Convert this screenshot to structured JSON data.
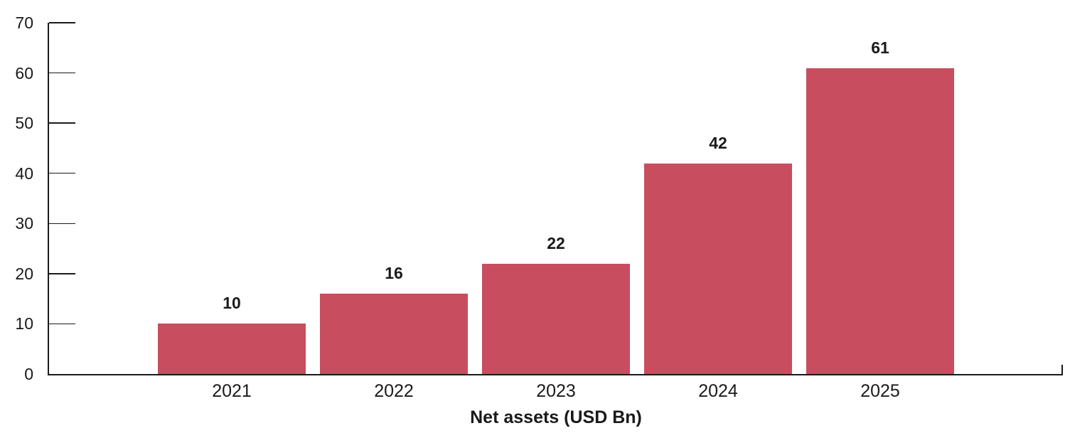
{
  "chart_data": {
    "type": "bar",
    "title": "",
    "categories": [
      "2021",
      "2022",
      "2023",
      "2024",
      "2025"
    ],
    "values": [
      10,
      16,
      22,
      42,
      61
    ],
    "value_labels": [
      "10",
      "16",
      "22",
      "42",
      "61"
    ],
    "xlabel": "Net assets (USD Bn)",
    "ylabel": "",
    "ylim": [
      0,
      70
    ],
    "yticks": [
      0,
      10,
      20,
      30,
      40,
      50,
      60,
      70
    ],
    "grid": false,
    "legend": false,
    "legend_position": "none",
    "bar_color": "#C74D5F",
    "axis_color": "#1A1A1A",
    "text_color": "#1A1A1A"
  }
}
